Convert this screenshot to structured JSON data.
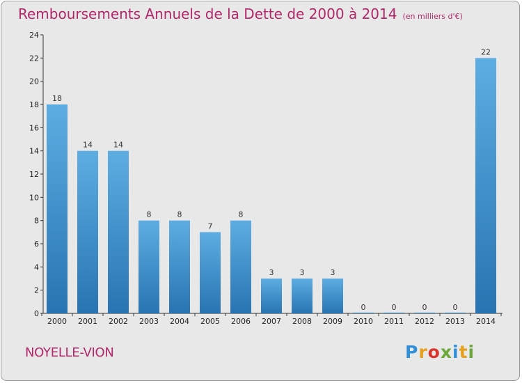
{
  "header": {
    "title": "Remboursements Annuels de la Dette de 2000 à 2014",
    "unit": "(en milliers d'€)"
  },
  "footer": {
    "commune": "NOYELLE-VION",
    "logo": "Proxiti"
  },
  "colors": {
    "title": "#b0276a",
    "bar_top": "#5dade2",
    "bar_bottom": "#2874b2",
    "plot_bg": "#e8e8e8"
  },
  "chart_data": {
    "type": "bar",
    "title": "Remboursements Annuels de la Dette de 2000 à 2014",
    "subtitle": "(en milliers d'€)",
    "xlabel": "",
    "ylabel": "",
    "categories": [
      "2000",
      "2001",
      "2002",
      "2003",
      "2004",
      "2005",
      "2006",
      "2007",
      "2008",
      "2009",
      "2010",
      "2011",
      "2012",
      "2013",
      "2014"
    ],
    "values": [
      18,
      14,
      14,
      8,
      8,
      7,
      8,
      3,
      3,
      3,
      0,
      0,
      0,
      0,
      22
    ],
    "ylim": [
      0,
      24
    ],
    "yticks": [
      0,
      2,
      4,
      6,
      8,
      10,
      12,
      14,
      16,
      18,
      20,
      22,
      24
    ],
    "grid": false,
    "legend": "none"
  }
}
